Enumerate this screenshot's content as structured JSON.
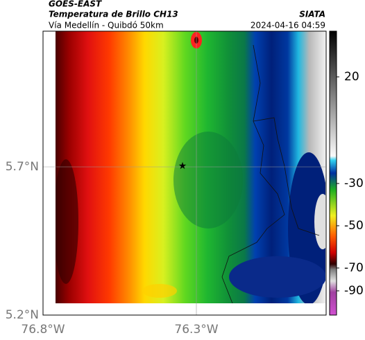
{
  "header": {
    "source": "GOES-EAST",
    "title": "Temperatura de Brillo CH13",
    "subtitle": "Vía Medellín - Quibdó 50km",
    "brand": "SIATA",
    "timestamp": "2024-04-16 04:59"
  },
  "axes": {
    "y_labels": [
      "5.7°N",
      "5.2°N"
    ],
    "x_labels": [
      "76.8°W",
      "76.3°W"
    ]
  },
  "colorbar": {
    "labels": [
      "20",
      "-30",
      "-50",
      "-70",
      "-90"
    ]
  }
}
